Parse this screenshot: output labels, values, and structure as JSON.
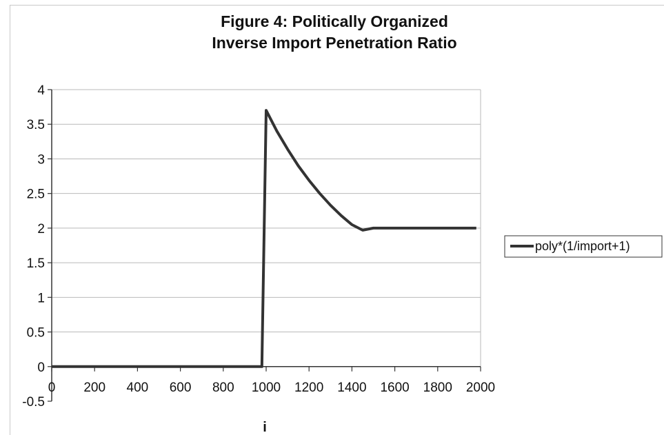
{
  "chart_data": {
    "type": "line",
    "title": "Figure 4: Politically Organized Inverse Import Penetration Ratio",
    "title_lines": [
      "Figure 4: Politically Organized",
      "Inverse Import Penetration Ratio"
    ],
    "xlabel": "i",
    "ylabel": "",
    "xlim": [
      0,
      2000
    ],
    "ylim": [
      -0.5,
      4
    ],
    "x_ticks": [
      0,
      200,
      400,
      600,
      800,
      1000,
      1200,
      1400,
      1600,
      1800,
      2000
    ],
    "y_ticks": [
      -0.5,
      0,
      0.5,
      1,
      1.5,
      2,
      2.5,
      3,
      3.5,
      4
    ],
    "x_tick_labels": [
      "0",
      "200",
      "400",
      "600",
      "800",
      "1000",
      "1200",
      "1400",
      "1600",
      "1800",
      "2000"
    ],
    "y_tick_labels": [
      "-0.5",
      "0",
      "0.5",
      "1",
      "1.5",
      "2",
      "2.5",
      "3",
      "3.5",
      "4"
    ],
    "grid": "horizontal",
    "legend_position": "right",
    "series": [
      {
        "name": "poly*(1/import+1)",
        "color": "#333333",
        "x": [
          0,
          100,
          200,
          300,
          400,
          500,
          600,
          700,
          800,
          900,
          980,
          1000,
          1050,
          1100,
          1150,
          1200,
          1250,
          1300,
          1350,
          1400,
          1450,
          1500,
          1600,
          1700,
          1800,
          1900,
          1980
        ],
        "y": [
          0,
          0,
          0,
          0,
          0,
          0,
          0,
          0,
          0,
          0,
          0,
          3.7,
          3.4,
          3.14,
          2.9,
          2.69,
          2.5,
          2.33,
          2.18,
          2.05,
          1.97,
          2,
          2,
          2,
          2,
          2,
          2
        ]
      }
    ]
  }
}
